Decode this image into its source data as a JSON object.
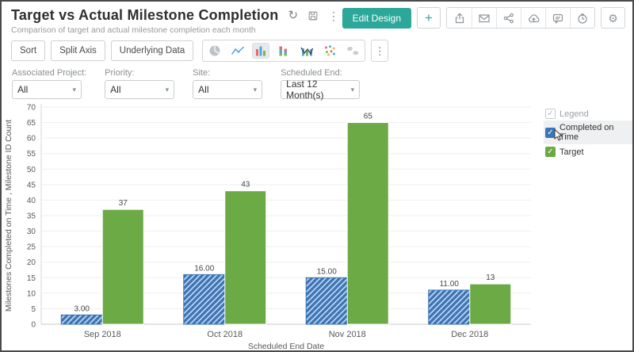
{
  "header": {
    "title": "Target vs Actual Milestone Completion",
    "subtitle": "Comparison of target and actual milestone completion each month",
    "actions": {
      "edit_design": "Edit Design",
      "add": "+"
    }
  },
  "toolbar": {
    "sort": "Sort",
    "split_axis": "Split Axis",
    "underlying_data": "Underlying Data"
  },
  "filters": [
    {
      "label": "Associated Project:",
      "value": "All"
    },
    {
      "label": "Priority:",
      "value": "All"
    },
    {
      "label": "Site:",
      "value": "All"
    },
    {
      "label": "Scheduled End:",
      "value": "Last 12 Month(s)"
    }
  ],
  "legend": {
    "title": "Legend",
    "items": [
      {
        "label": "Completed on Time",
        "color": "#3A75B8",
        "checked": true,
        "highlighted": true
      },
      {
        "label": "Target",
        "color": "#6BAA45",
        "checked": true,
        "highlighted": false
      }
    ]
  },
  "chart_data": {
    "type": "bar",
    "categories": [
      "Sep 2018",
      "Oct 2018",
      "Nov 2018",
      "Dec 2018"
    ],
    "series": [
      {
        "name": "Completed on Time",
        "values": [
          3,
          16,
          15,
          11
        ],
        "labels": [
          "3.00",
          "16.00",
          "15.00",
          "11.00"
        ],
        "color": "#3A75B8",
        "pattern": "diagonal-hatch"
      },
      {
        "name": "Target",
        "values": [
          37,
          43,
          65,
          13
        ],
        "labels": [
          "37",
          "43",
          "65",
          "13"
        ],
        "color": "#6BAA45"
      }
    ],
    "xlabel": "Scheduled End Date",
    "ylabel": "Milestones Completed on Time , Milestone ID Count",
    "ylim": [
      0,
      70
    ],
    "ytick_step": 5,
    "grid": true,
    "legend_position": "top-right"
  },
  "colors": {
    "accent": "#2BA89A",
    "bar_blue": "#3A75B8",
    "bar_green": "#6BAA45",
    "grid": "#f1edf0"
  }
}
